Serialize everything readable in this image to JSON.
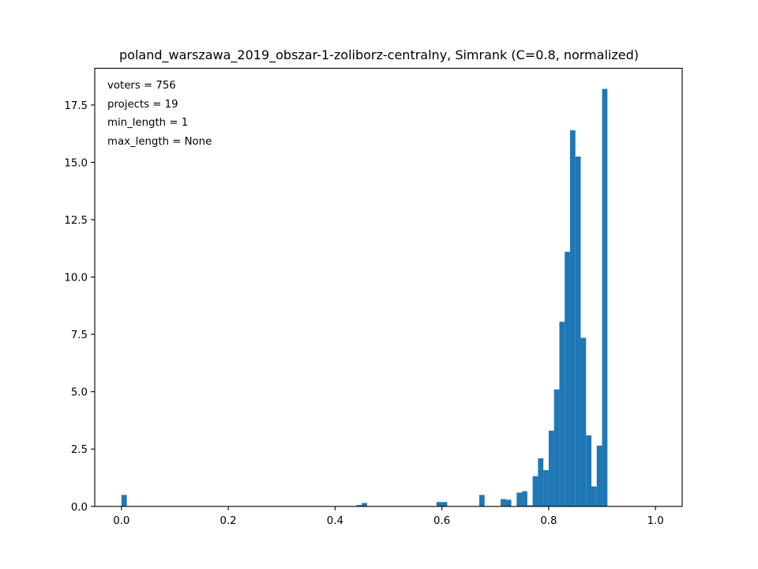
{
  "chart_data": {
    "type": "bar",
    "title": "poland_warszawa_2019_obszar-1-zoliborz-centralny, Simrank (C=0.8, normalized)",
    "xlabel": "",
    "ylabel": "",
    "xlim": [
      -0.05,
      1.05
    ],
    "ylim": [
      0,
      19.1
    ],
    "bin_width": 0.01,
    "grid": false,
    "legend": "none",
    "bar_color": "#1f77b4",
    "x_ticks": [
      {
        "value": 0.0,
        "label": "0.0"
      },
      {
        "value": 0.2,
        "label": "0.2"
      },
      {
        "value": 0.4,
        "label": "0.4"
      },
      {
        "value": 0.6,
        "label": "0.6"
      },
      {
        "value": 0.8,
        "label": "0.8"
      },
      {
        "value": 1.0,
        "label": "1.0"
      }
    ],
    "y_ticks": [
      {
        "value": 0.0,
        "label": "0.0"
      },
      {
        "value": 2.5,
        "label": "2.5"
      },
      {
        "value": 5.0,
        "label": "5.0"
      },
      {
        "value": 7.5,
        "label": "7.5"
      },
      {
        "value": 10.0,
        "label": "10.0"
      },
      {
        "value": 12.5,
        "label": "12.5"
      },
      {
        "value": 15.0,
        "label": "15.0"
      },
      {
        "value": 17.5,
        "label": "17.5"
      }
    ],
    "bins": [
      {
        "x": 0.0,
        "value": 0.5
      },
      {
        "x": 0.44,
        "value": 0.06
      },
      {
        "x": 0.45,
        "value": 0.15
      },
      {
        "x": 0.59,
        "value": 0.19
      },
      {
        "x": 0.6,
        "value": 0.19
      },
      {
        "x": 0.67,
        "value": 0.5
      },
      {
        "x": 0.71,
        "value": 0.32
      },
      {
        "x": 0.72,
        "value": 0.29
      },
      {
        "x": 0.74,
        "value": 0.6
      },
      {
        "x": 0.75,
        "value": 0.66
      },
      {
        "x": 0.76,
        "value": 0.05
      },
      {
        "x": 0.77,
        "value": 1.32
      },
      {
        "x": 0.78,
        "value": 2.1
      },
      {
        "x": 0.79,
        "value": 1.58
      },
      {
        "x": 0.8,
        "value": 3.3
      },
      {
        "x": 0.81,
        "value": 5.1
      },
      {
        "x": 0.82,
        "value": 8.05
      },
      {
        "x": 0.83,
        "value": 11.1
      },
      {
        "x": 0.84,
        "value": 16.4
      },
      {
        "x": 0.85,
        "value": 15.25
      },
      {
        "x": 0.86,
        "value": 7.35
      },
      {
        "x": 0.87,
        "value": 3.1
      },
      {
        "x": 0.88,
        "value": 0.87
      },
      {
        "x": 0.89,
        "value": 2.65
      },
      {
        "x": 0.9,
        "value": 18.2
      }
    ],
    "annotations": [
      "voters = 756",
      "projects = 19",
      "min_length = 1",
      "max_length = None"
    ]
  }
}
